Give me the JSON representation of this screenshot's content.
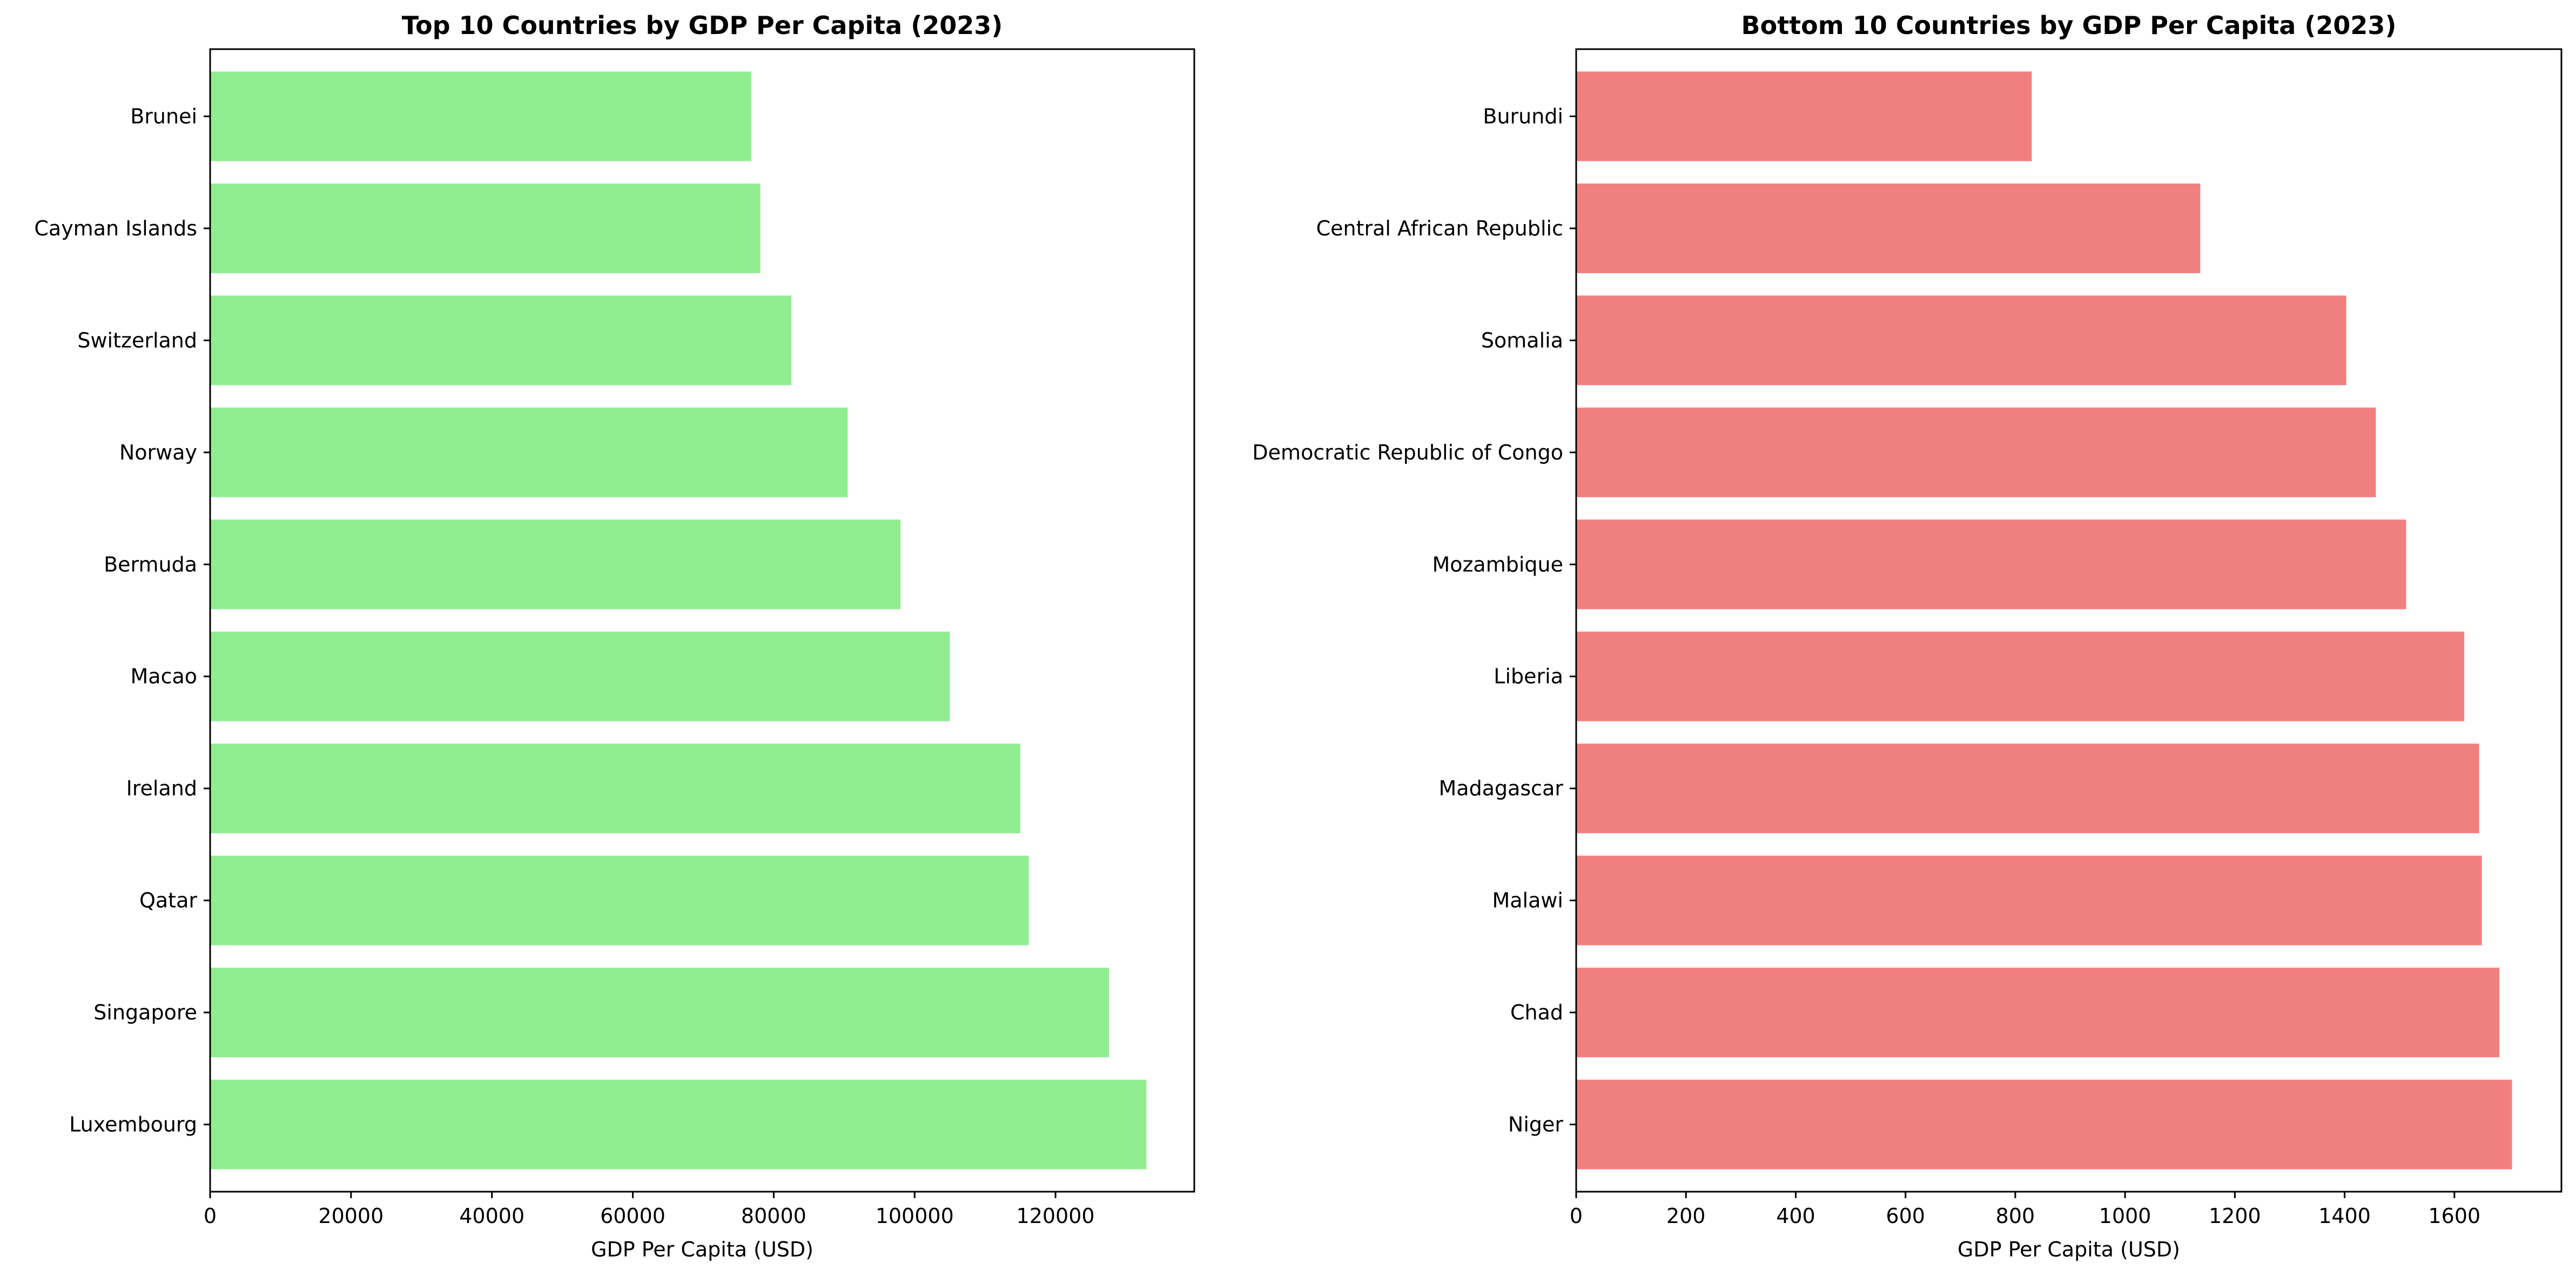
{
  "chart_data": [
    {
      "type": "bar",
      "orientation": "horizontal",
      "title": "Top 10 Countries by GDP Per Capita (2023)",
      "xlabel": "GDP Per Capita (USD)",
      "ylabel": "",
      "categories": [
        "Luxembourg",
        "Singapore",
        "Qatar",
        "Ireland",
        "Macao",
        "Bermuda",
        "Norway",
        "Switzerland",
        "Cayman Islands",
        "Brunei"
      ],
      "values": [
        132900,
        127600,
        116200,
        115000,
        105000,
        98000,
        90500,
        82500,
        78100,
        76800
      ],
      "xlim": [
        0,
        139700
      ],
      "xticks": [
        0,
        20000,
        40000,
        60000,
        80000,
        100000,
        120000
      ],
      "xtick_labels": [
        "0",
        "20000",
        "40000",
        "60000",
        "80000",
        "100000",
        "120000"
      ],
      "color": "#90ee90",
      "grid": false,
      "legend": "none"
    },
    {
      "type": "bar",
      "orientation": "horizontal",
      "title": "Bottom 10 Countries by GDP Per Capita (2023)",
      "xlabel": "GDP Per Capita (USD)",
      "ylabel": "",
      "categories": [
        "Niger",
        "Chad",
        "Malawi",
        "Madagascar",
        "Liberia",
        "Mozambique",
        "Democratic Republic of Congo",
        "Somalia",
        "Central African Republic",
        "Burundi"
      ],
      "values": [
        1705,
        1682,
        1650,
        1645,
        1618,
        1512,
        1457,
        1403,
        1137,
        830
      ],
      "xlim": [
        0,
        1795
      ],
      "xticks": [
        0,
        200,
        400,
        600,
        800,
        1000,
        1200,
        1400,
        1600
      ],
      "xtick_labels": [
        "0",
        "200",
        "400",
        "600",
        "800",
        "1000",
        "1200",
        "1400",
        "1600"
      ],
      "color": "#f08080",
      "grid": false,
      "legend": "none"
    }
  ]
}
